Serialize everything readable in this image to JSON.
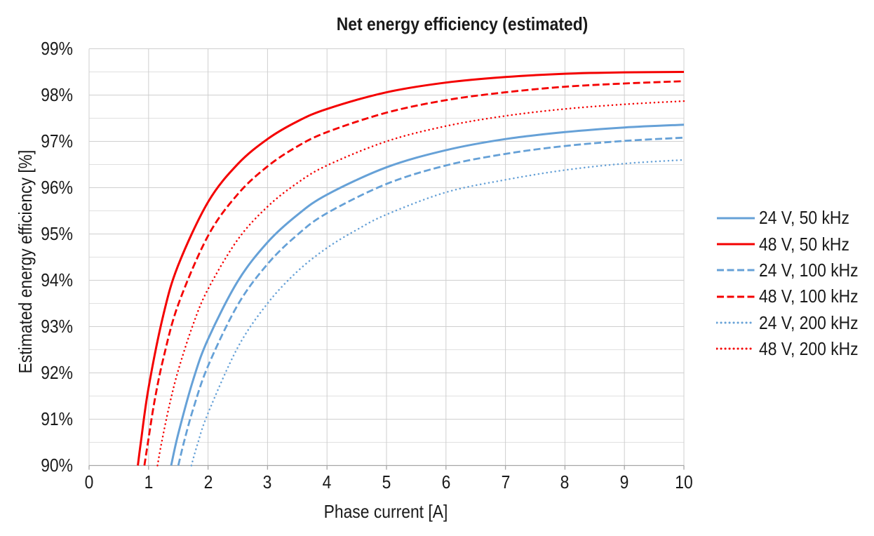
{
  "title": "Net energy efficiency (estimated)",
  "x_axis": {
    "title": "Phase current [A]",
    "ticks": [
      "0",
      "1",
      "2",
      "3",
      "4",
      "5",
      "6",
      "7",
      "8",
      "9",
      "10"
    ]
  },
  "y_axis": {
    "title": "Estimated energy efficiency [%]",
    "ticks": [
      "90%",
      "91%",
      "92%",
      "93%",
      "94%",
      "95%",
      "96%",
      "97%",
      "98%",
      "99%"
    ]
  },
  "colors": {
    "blue": "#66a1d7",
    "red": "#f40000",
    "grid_major": "#cfcfcf",
    "grid_minor": "#e0e0e0",
    "axis": "#a6a6a6",
    "text": "#1a1a1a"
  },
  "chart_data": {
    "type": "line",
    "title": "Net energy efficiency (estimated)",
    "xlabel": "Phase current [A]",
    "ylabel": "Estimated energy efficiency [%]",
    "xlim": [
      0,
      10
    ],
    "ylim": [
      90,
      99
    ],
    "grid": {
      "x_major": 1,
      "y_major": 1,
      "y_minor": 0.5
    },
    "legend_position": "right",
    "series": [
      {
        "name": "24 V, 50 kHz",
        "voltage_v": 24,
        "frequency_khz": 50,
        "color": "blue",
        "style": "solid",
        "points": [
          [
            1.38,
            90
          ],
          [
            1.5,
            90.69
          ],
          [
            1.75,
            91.85
          ],
          [
            2,
            92.73
          ],
          [
            2.5,
            93.98
          ],
          [
            3,
            94.82
          ],
          [
            3.5,
            95.41
          ],
          [
            4,
            95.85
          ],
          [
            5,
            96.44
          ],
          [
            6,
            96.81
          ],
          [
            7,
            97.05
          ],
          [
            8,
            97.2
          ],
          [
            9,
            97.3
          ],
          [
            10,
            97.36
          ]
        ]
      },
      {
        "name": "48 V, 50 kHz",
        "voltage_v": 48,
        "frequency_khz": 50,
        "color": "red",
        "style": "solid",
        "points": [
          [
            0.82,
            90
          ],
          [
            0.87,
            90.5
          ],
          [
            1,
            91.68
          ],
          [
            1.25,
            93.26
          ],
          [
            1.5,
            94.33
          ],
          [
            2,
            95.69
          ],
          [
            2.5,
            96.51
          ],
          [
            3,
            97.05
          ],
          [
            3.5,
            97.43
          ],
          [
            4,
            97.7
          ],
          [
            5,
            98.06
          ],
          [
            6,
            98.27
          ],
          [
            7,
            98.39
          ],
          [
            8,
            98.46
          ],
          [
            9,
            98.49
          ],
          [
            10,
            98.5
          ]
        ]
      },
      {
        "name": "24 V, 100 kHz",
        "voltage_v": 24,
        "frequency_khz": 100,
        "color": "blue",
        "style": "dashed",
        "points": [
          [
            1.5,
            90
          ],
          [
            1.6,
            90.53
          ],
          [
            1.75,
            91.22
          ],
          [
            2,
            92.15
          ],
          [
            2.5,
            93.47
          ],
          [
            3,
            94.35
          ],
          [
            3.5,
            94.98
          ],
          [
            4,
            95.45
          ],
          [
            5,
            96.08
          ],
          [
            6,
            96.48
          ],
          [
            7,
            96.73
          ],
          [
            8,
            96.9
          ],
          [
            9,
            97.01
          ],
          [
            10,
            97.08
          ]
        ]
      },
      {
        "name": "48 V, 100 kHz",
        "voltage_v": 48,
        "frequency_khz": 100,
        "color": "red",
        "style": "dashed",
        "points": [
          [
            0.93,
            90
          ],
          [
            0.99,
            90.5
          ],
          [
            1.1,
            91.39
          ],
          [
            1.25,
            92.32
          ],
          [
            1.5,
            93.48
          ],
          [
            2,
            94.96
          ],
          [
            2.5,
            95.86
          ],
          [
            3,
            96.46
          ],
          [
            3.5,
            96.89
          ],
          [
            4,
            97.2
          ],
          [
            5,
            97.62
          ],
          [
            6,
            97.89
          ],
          [
            7,
            98.06
          ],
          [
            8,
            98.18
          ],
          [
            9,
            98.25
          ],
          [
            10,
            98.3
          ]
        ]
      },
      {
        "name": "24 V, 200 kHz",
        "voltage_v": 24,
        "frequency_khz": 200,
        "color": "blue",
        "style": "dotted",
        "points": [
          [
            1.72,
            90
          ],
          [
            1.82,
            90.45
          ],
          [
            2,
            91.13
          ],
          [
            2.5,
            92.55
          ],
          [
            3,
            93.5
          ],
          [
            3.5,
            94.19
          ],
          [
            4,
            94.7
          ],
          [
            4.5,
            95.09
          ],
          [
            5,
            95.42
          ],
          [
            6,
            95.9
          ],
          [
            7,
            96.17
          ],
          [
            8,
            96.38
          ],
          [
            9,
            96.52
          ],
          [
            10,
            96.6
          ]
        ]
      },
      {
        "name": "48 V, 200 kHz",
        "voltage_v": 48,
        "frequency_khz": 200,
        "color": "red",
        "style": "dotted",
        "points": [
          [
            1.15,
            90
          ],
          [
            1.22,
            90.5
          ],
          [
            1.35,
            91.3
          ],
          [
            1.5,
            92.06
          ],
          [
            1.75,
            93.05
          ],
          [
            2,
            93.81
          ],
          [
            2.5,
            94.88
          ],
          [
            3,
            95.59
          ],
          [
            3.5,
            96.1
          ],
          [
            4,
            96.48
          ],
          [
            5,
            97
          ],
          [
            6,
            97.33
          ],
          [
            7,
            97.55
          ],
          [
            8,
            97.7
          ],
          [
            9,
            97.8
          ],
          [
            10,
            97.87
          ]
        ]
      }
    ]
  }
}
